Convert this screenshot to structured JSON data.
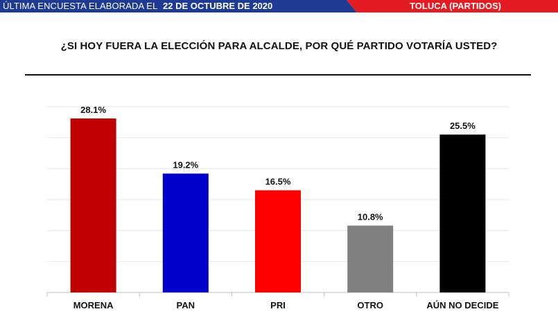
{
  "header": {
    "survey_prefix": "ÚLTIMA ENCUESTA ELABORADA EL",
    "survey_date": "22 DE OCTUBRE DE 2020",
    "location": "TOLUCA (PARTIDOS)",
    "colors": {
      "left": "#1f3a93",
      "right": "#e31b23"
    }
  },
  "question": "¿SI HOY FUERA LA ELECCIÓN PARA ALCALDE, POR QUÉ PARTIDO VOTARÍA USTED?",
  "chart_data": {
    "type": "bar",
    "categories": [
      "MORENA",
      "PAN",
      "PRI",
      "OTRO",
      "AÚN NO DECIDE"
    ],
    "values": [
      28.1,
      19.2,
      16.5,
      10.8,
      25.5
    ],
    "value_labels": [
      "28.1%",
      "19.2%",
      "16.5%",
      "10.8%",
      "25.5%"
    ],
    "colors": [
      "#c00000",
      "#0000cc",
      "#ff0000",
      "#808080",
      "#000000"
    ],
    "ylim": [
      0,
      30
    ],
    "grid": true,
    "y_axis_visible": false
  }
}
